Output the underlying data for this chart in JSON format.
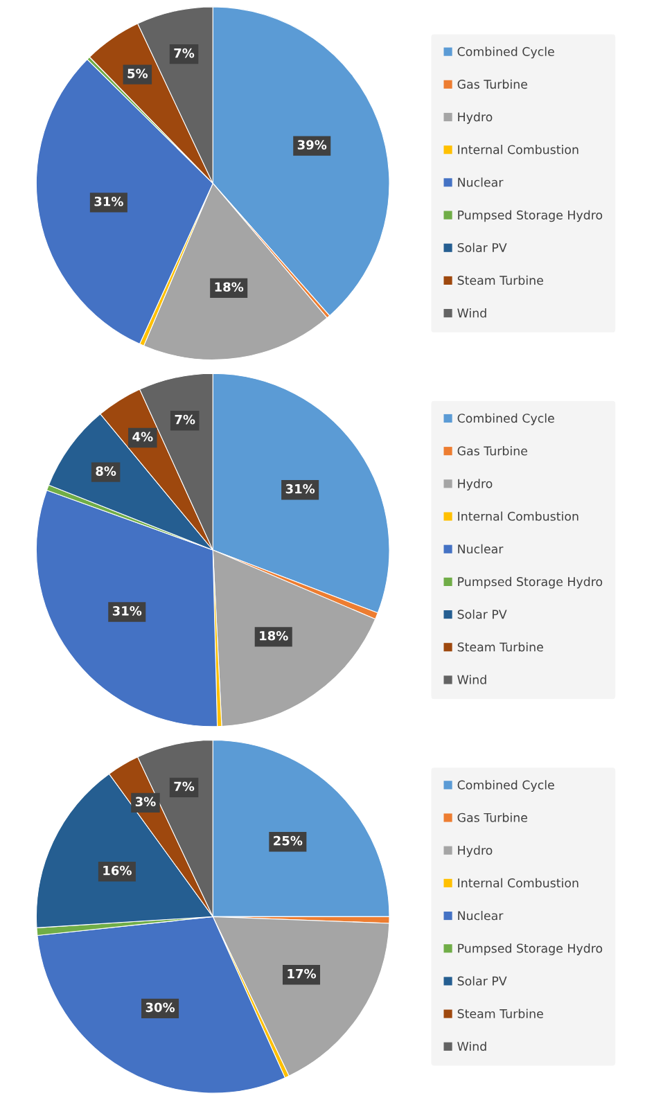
{
  "chart_data": [
    {
      "type": "pie",
      "categories": [
        "Combined Cycle",
        "Gas Turbine",
        "Hydro",
        "Internal Combustion",
        "Nuclear",
        "Pumpsed Storage Hydro",
        "Solar PV",
        "Steam Turbine",
        "Wind"
      ],
      "values": [
        38.5,
        0.3,
        17.6,
        0.4,
        30.6,
        0.3,
        0.0,
        5.3,
        7.0
      ],
      "value_labels": [
        "39%",
        null,
        "18%",
        null,
        "31%",
        null,
        null,
        "5%",
        "7%"
      ],
      "colors": [
        "#5b9bd5",
        "#ed7d31",
        "#a5a5a5",
        "#ffc000",
        "#4472c4",
        "#70ad47",
        "#255e91",
        "#9e480e",
        "#636363"
      ],
      "legend": "right"
    },
    {
      "type": "pie",
      "categories": [
        "Combined Cycle",
        "Gas Turbine",
        "Hydro",
        "Internal Combustion",
        "Nuclear",
        "Pumpsed Storage Hydro",
        "Solar PV",
        "Steam Turbine",
        "Wind"
      ],
      "values": [
        30.8,
        0.6,
        17.8,
        0.4,
        30.9,
        0.5,
        8.0,
        4.2,
        6.8
      ],
      "value_labels": [
        "31%",
        null,
        "18%",
        null,
        "31%",
        null,
        "8%",
        "4%",
        "7%"
      ],
      "colors": [
        "#5b9bd5",
        "#ed7d31",
        "#a5a5a5",
        "#ffc000",
        "#4472c4",
        "#70ad47",
        "#255e91",
        "#9e480e",
        "#636363"
      ],
      "legend": "right"
    },
    {
      "type": "pie",
      "categories": [
        "Combined Cycle",
        "Gas Turbine",
        "Hydro",
        "Internal Combustion",
        "Nuclear",
        "Pumpsed Storage Hydro",
        "Solar PV",
        "Steam Turbine",
        "Wind"
      ],
      "values": [
        25.0,
        0.6,
        17.3,
        0.4,
        30.0,
        0.7,
        16.0,
        3.0,
        7.0
      ],
      "value_labels": [
        "25%",
        null,
        "17%",
        null,
        "30%",
        null,
        "16%",
        "3%",
        "7%"
      ],
      "colors": [
        "#5b9bd5",
        "#ed7d31",
        "#a5a5a5",
        "#ffc000",
        "#4472c4",
        "#70ad47",
        "#255e91",
        "#9e480e",
        "#636363"
      ],
      "legend": "right"
    }
  ]
}
